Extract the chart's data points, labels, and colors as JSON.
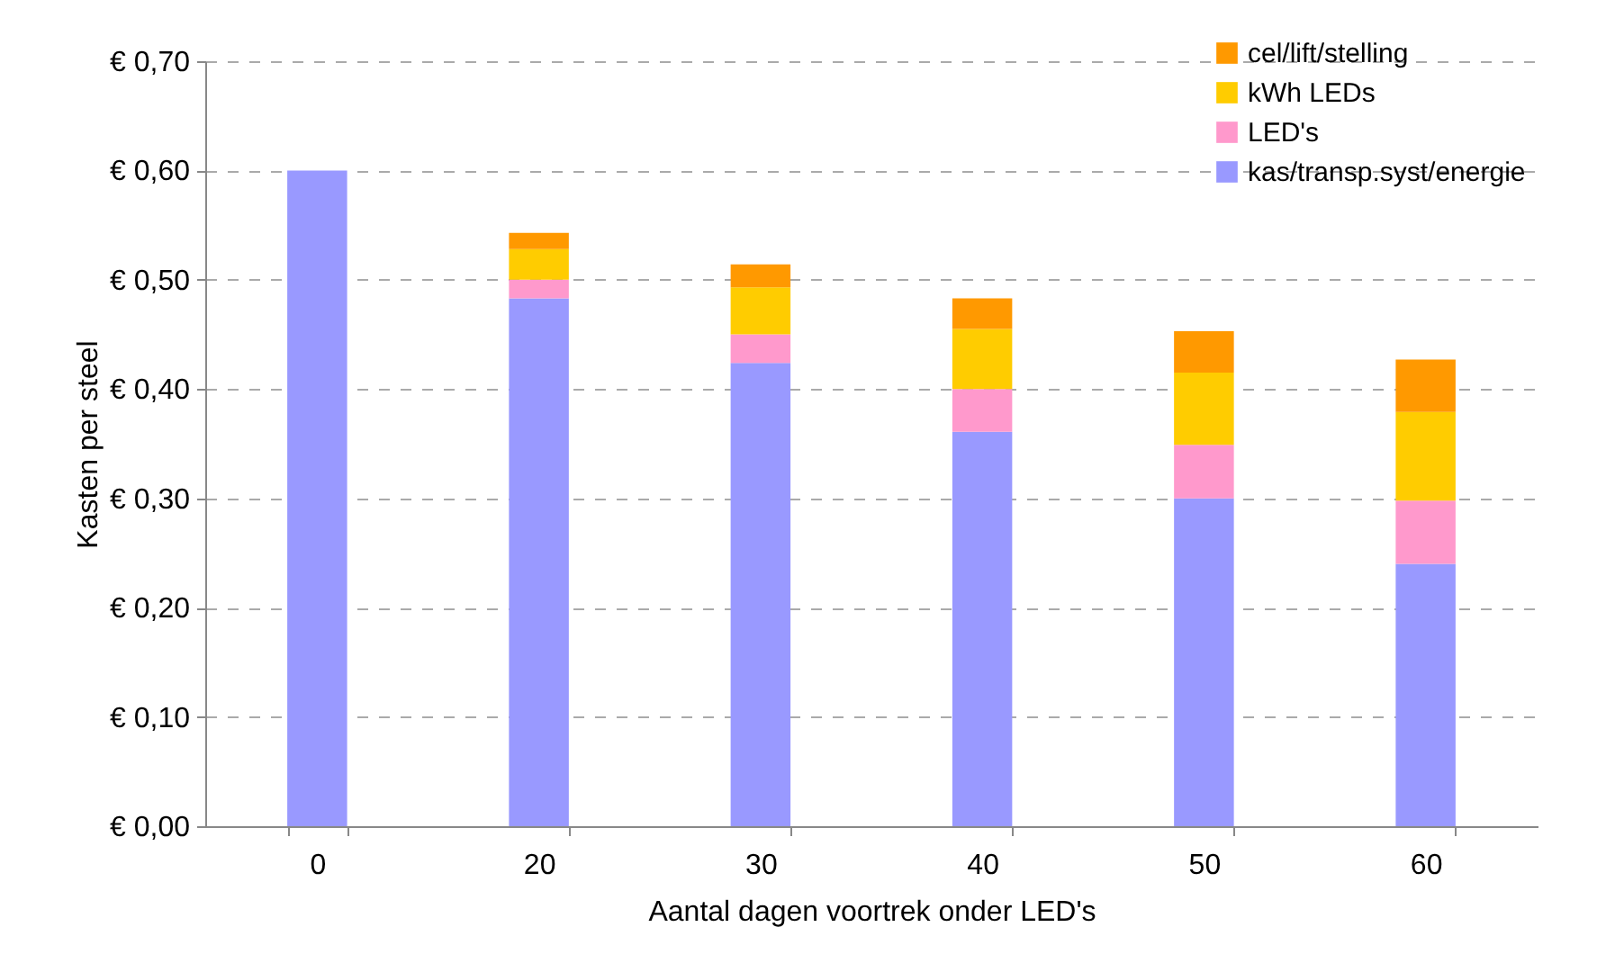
{
  "chart_data": {
    "type": "bar",
    "xlabel": "Aantal dagen voortrek onder LED's",
    "ylabel": "Kasten per steel",
    "categories": [
      "0",
      "20",
      "30",
      "40",
      "50",
      "60"
    ],
    "stacked": true,
    "series": [
      {
        "name": "kas/transp.syst/energie",
        "color": "#9999ff",
        "values": [
          0.6,
          0.483,
          0.424,
          0.361,
          0.3,
          0.24
        ]
      },
      {
        "name": "LED's",
        "color": "#ff99cc",
        "values": [
          0,
          0.017,
          0.026,
          0.039,
          0.049,
          0.058
        ]
      },
      {
        "name": "kWh LEDs",
        "color": "#ffcc00",
        "values": [
          0,
          0.028,
          0.043,
          0.055,
          0.066,
          0.081
        ]
      },
      {
        "name": "cel/lift/stelling",
        "color": "#ff9900",
        "values": [
          0,
          0.015,
          0.021,
          0.028,
          0.038,
          0.048
        ]
      }
    ],
    "ylim": [
      0,
      0.7
    ],
    "yticks": [
      {
        "value": 0,
        "label": "€ 0,00"
      },
      {
        "value": 0.1,
        "label": "€ 0,10"
      },
      {
        "value": 0.2,
        "label": "€ 0,20"
      },
      {
        "value": 0.3,
        "label": "€ 0,30"
      },
      {
        "value": 0.4,
        "label": "€ 0,40"
      },
      {
        "value": 0.5,
        "label": "€ 0,50"
      },
      {
        "value": 0.6,
        "label": "€ 0,60"
      },
      {
        "value": 0.7,
        "label": "€ 0,70"
      }
    ],
    "grid": "y",
    "legend": "top right"
  }
}
